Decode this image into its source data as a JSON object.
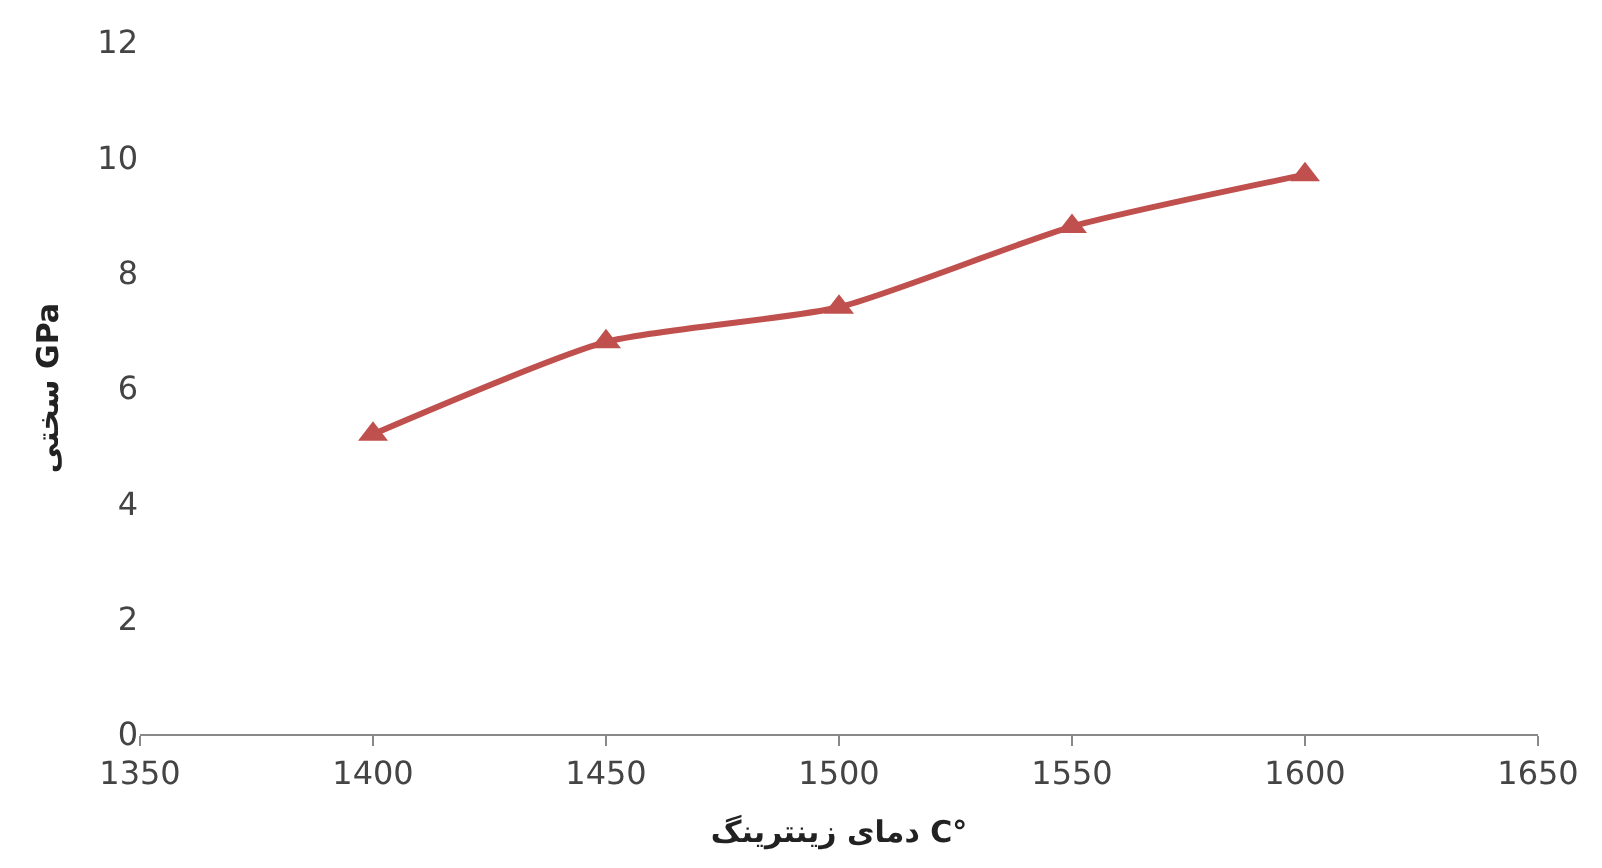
{
  "chart_data": {
    "type": "line",
    "xlabel": "دمای زینترینگ C°",
    "ylabel": "سختی GPa",
    "x": [
      1400,
      1450,
      1500,
      1550,
      1600
    ],
    "series": [
      {
        "color": "#c0504d",
        "values": [
          5.2,
          6.8,
          7.4,
          8.8,
          9.7
        ]
      }
    ],
    "xlim": [
      1350,
      1650
    ],
    "xticks": [
      1350,
      1400,
      1450,
      1500,
      1550,
      1600,
      1650
    ],
    "ylim": [
      0,
      12
    ],
    "yticks": [
      0,
      2,
      4,
      6,
      8,
      10,
      12
    ],
    "legend": false,
    "marker": "triangle",
    "line_style": "solid"
  }
}
